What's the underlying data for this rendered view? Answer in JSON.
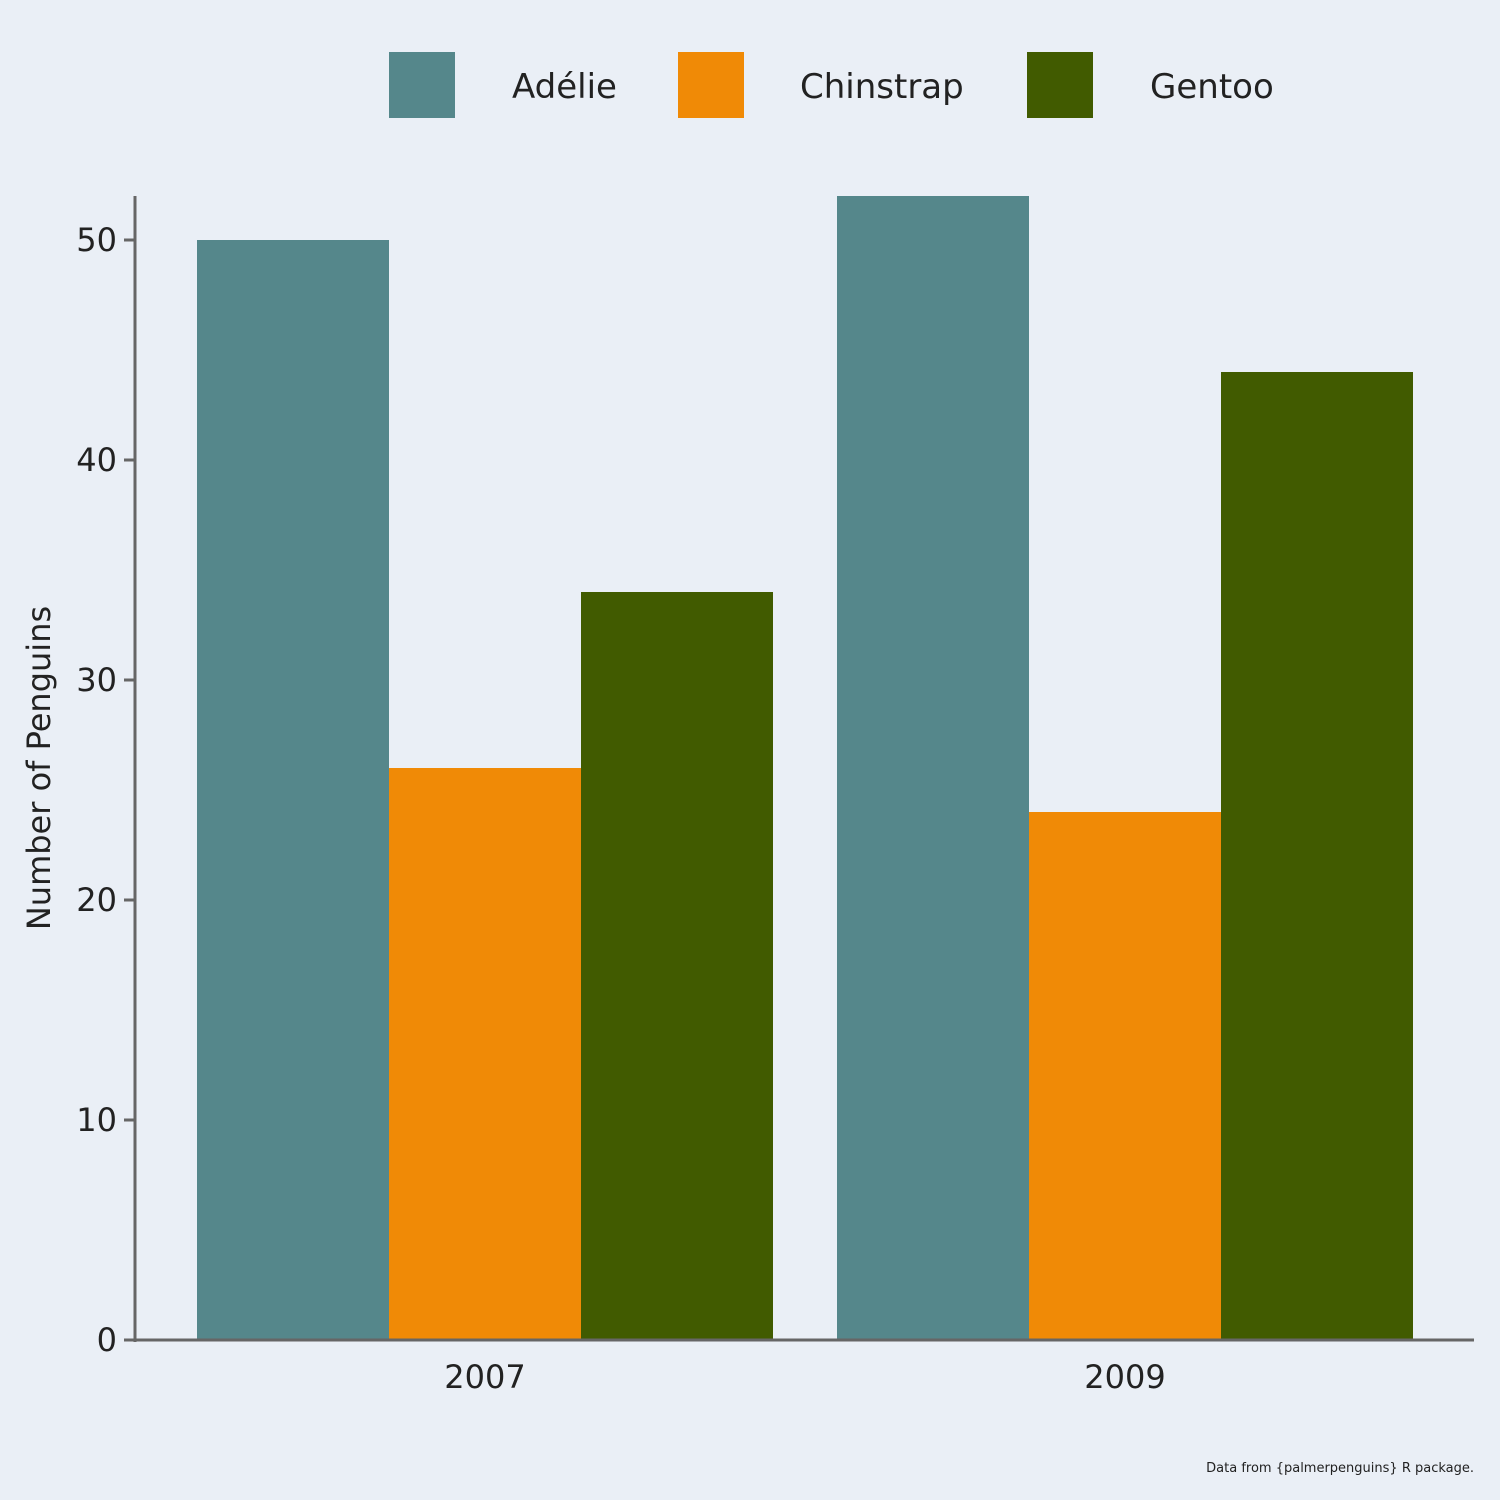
{
  "chart_data": {
    "type": "bar",
    "title": "",
    "xlabel": "",
    "ylabel": "Number of Penguins",
    "categories": [
      "2007",
      "2009"
    ],
    "series": [
      {
        "name": "Adélie",
        "color": "#55878b",
        "values": [
          50,
          52
        ]
      },
      {
        "name": "Chinstrap",
        "color": "#f08a06",
        "values": [
          26,
          24
        ]
      },
      {
        "name": "Gentoo",
        "color": "#415b00",
        "values": [
          34,
          44
        ]
      }
    ],
    "ylim": [
      0,
      52
    ],
    "yticks": [
      0,
      10,
      20,
      30,
      40,
      50
    ],
    "grid": false,
    "legend_position": "top",
    "caption": "Data from {palmerpenguins} R package."
  }
}
